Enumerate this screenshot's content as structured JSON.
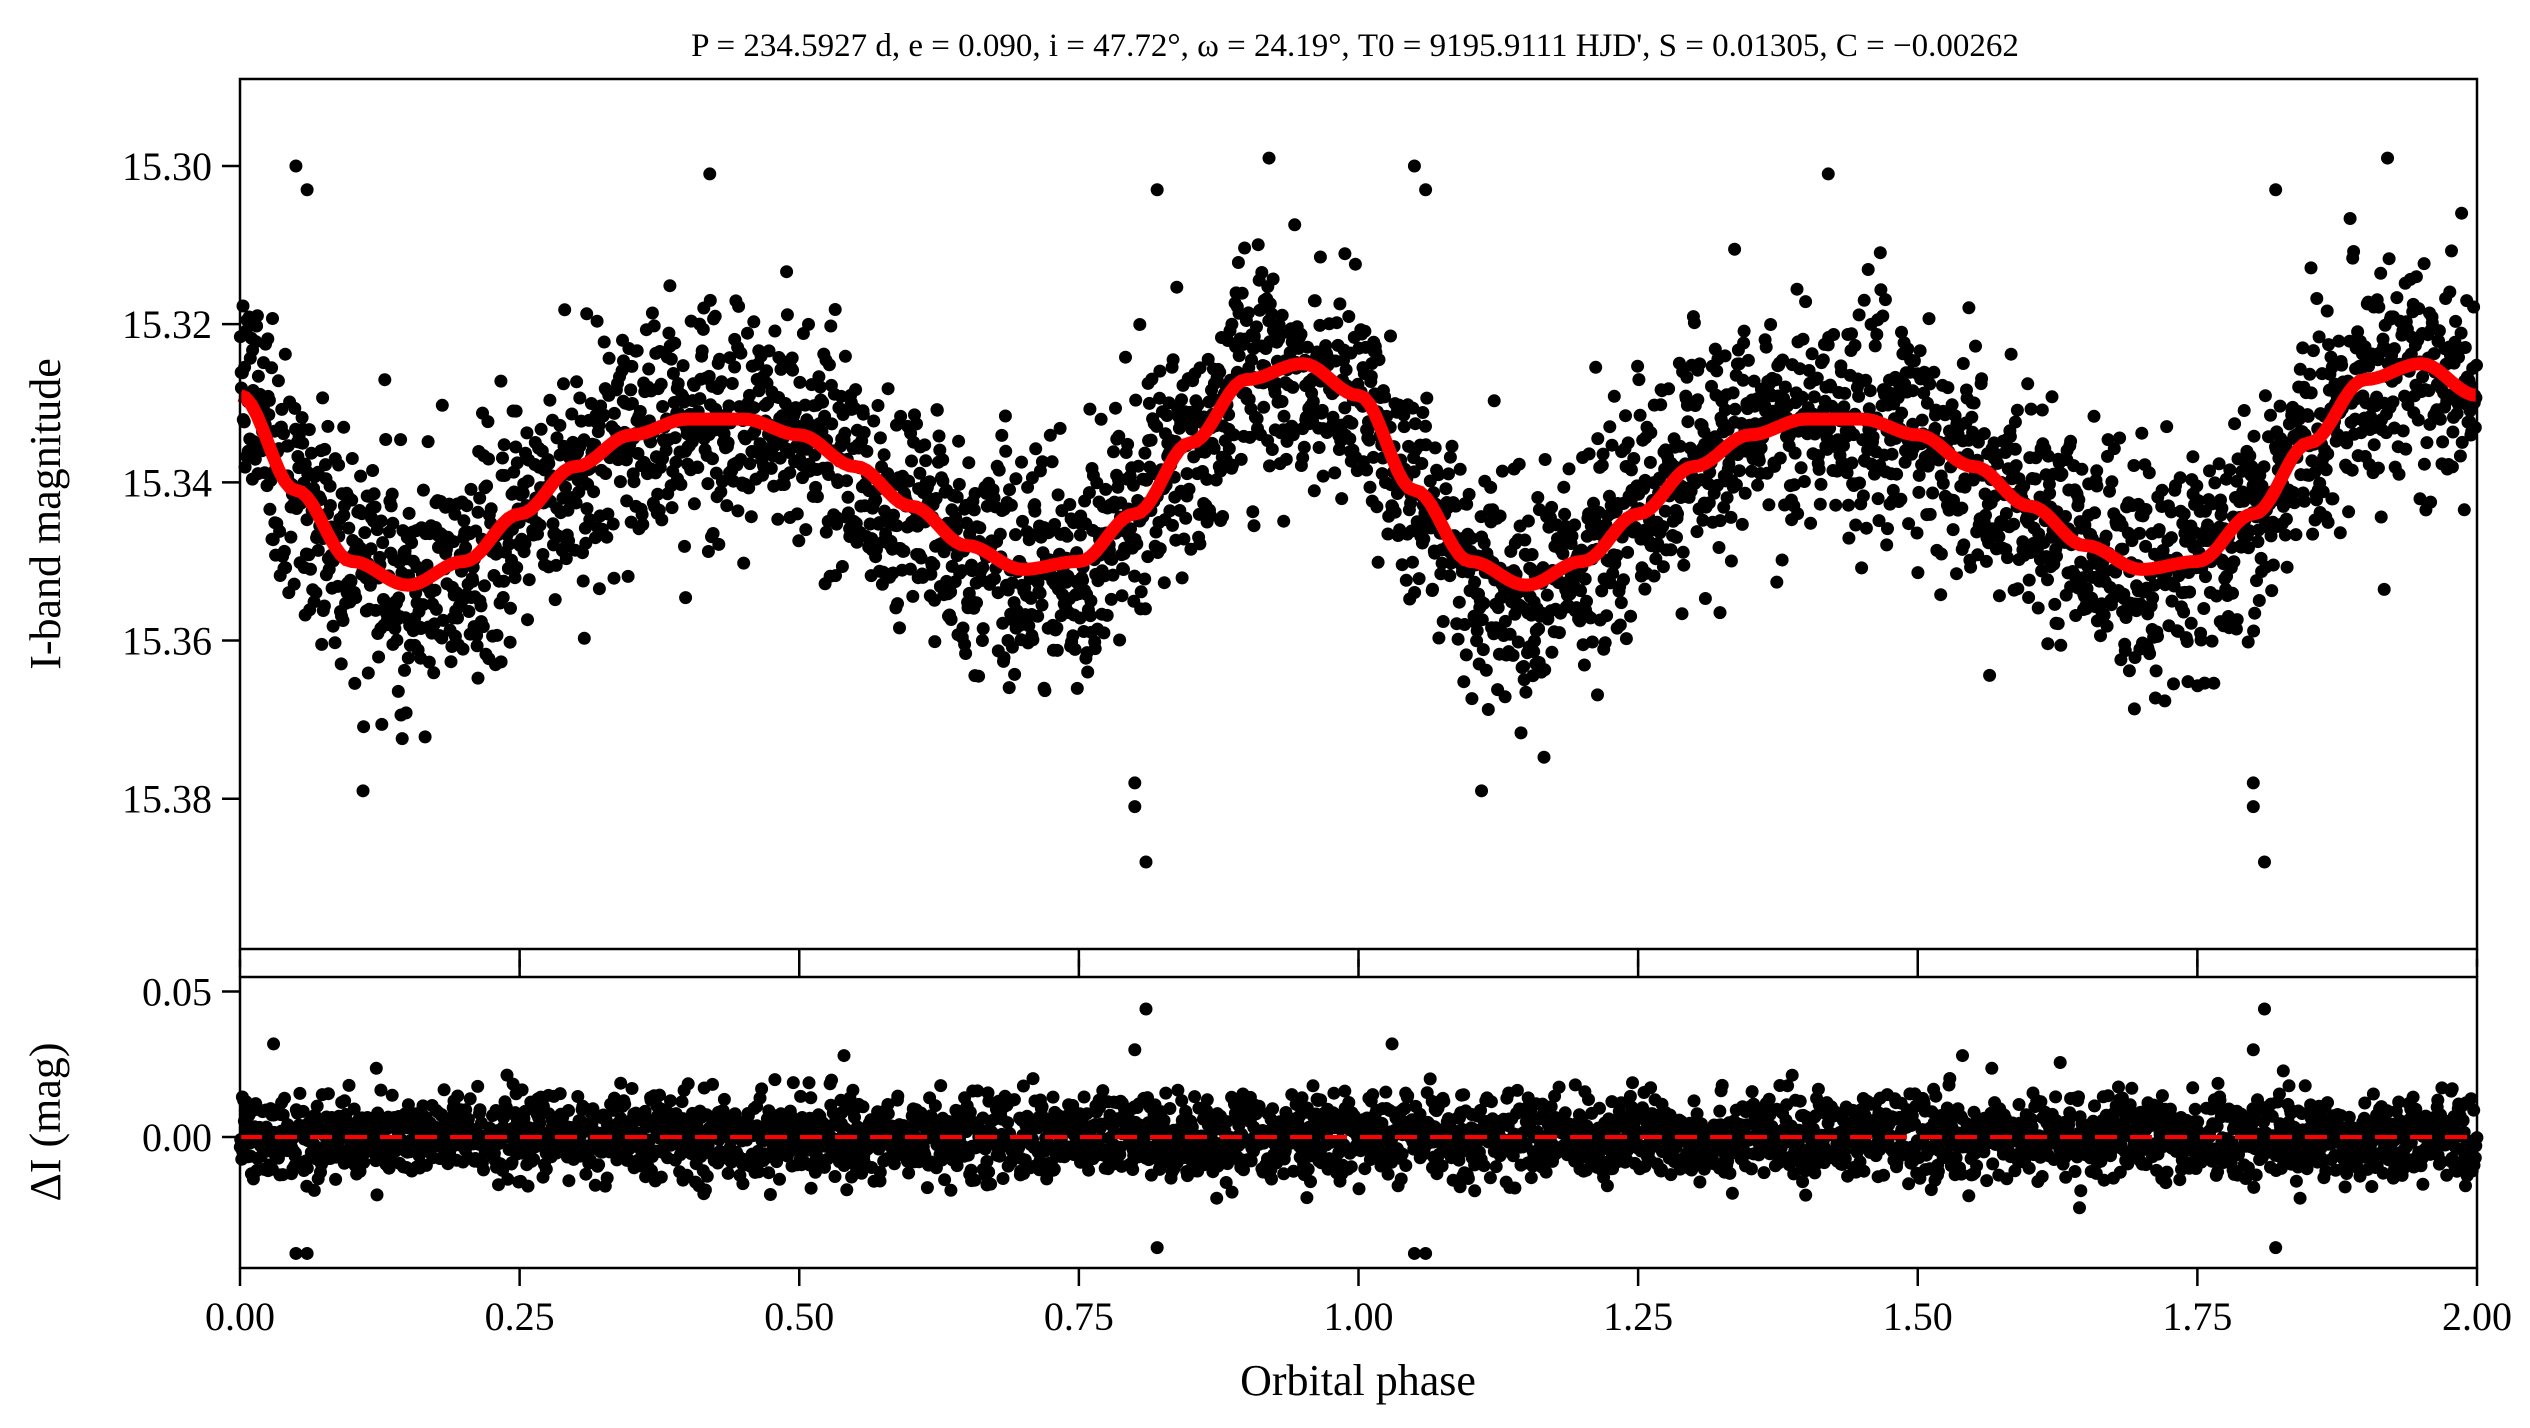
{
  "chart_data": [
    {
      "type": "scatter",
      "title": "P = 234.5927 d, e = 0.090, i = 47.72°, ω = 24.19°, T0 = 9195.9111 HJD', S = 0.01305, C = −0.00262",
      "ylabel": "I-band magnitude",
      "xlabel": "",
      "xlim": [
        0.0,
        2.0
      ],
      "ylim": [
        15.399,
        15.289
      ],
      "y_inverted": true,
      "grid": false,
      "yticks": [
        15.3,
        15.32,
        15.34,
        15.36,
        15.38
      ],
      "ytick_labels": [
        "15.30",
        "15.32",
        "15.34",
        "15.36",
        "15.38"
      ],
      "xticks": [
        0.0,
        0.25,
        0.5,
        0.75,
        1.0,
        1.25,
        1.5,
        1.75,
        2.0
      ],
      "colors": {
        "points": "#000000",
        "model": "#ff0000"
      },
      "model_curve": {
        "x": [
          0.0,
          0.05,
          0.1,
          0.15,
          0.2,
          0.25,
          0.3,
          0.35,
          0.4,
          0.45,
          0.5,
          0.55,
          0.6,
          0.65,
          0.7,
          0.75,
          0.8,
          0.85,
          0.9,
          0.95,
          1.0,
          1.05,
          1.1,
          1.15,
          1.2,
          1.25,
          1.3,
          1.35,
          1.4,
          1.45,
          1.5,
          1.55,
          1.6,
          1.65,
          1.7,
          1.75,
          1.8,
          1.85,
          1.9,
          1.95,
          2.0
        ],
        "y": [
          15.329,
          15.341,
          15.35,
          15.353,
          15.35,
          15.344,
          15.338,
          15.334,
          15.332,
          15.332,
          15.334,
          15.338,
          15.343,
          15.348,
          15.351,
          15.35,
          15.344,
          15.335,
          15.327,
          15.325,
          15.329,
          15.341,
          15.35,
          15.353,
          15.35,
          15.344,
          15.338,
          15.334,
          15.332,
          15.332,
          15.334,
          15.338,
          15.343,
          15.348,
          15.351,
          15.35,
          15.344,
          15.335,
          15.327,
          15.325,
          15.329
        ]
      },
      "scatter_band_halfwidth": 0.013,
      "outliers": {
        "x": [
          0.05,
          0.06,
          0.11,
          0.42,
          0.8,
          0.8,
          0.81,
          0.82,
          0.92,
          1.05,
          1.06,
          1.11,
          1.42,
          1.8,
          1.8,
          1.81,
          1.82,
          1.92
        ],
        "y": [
          15.3,
          15.303,
          15.379,
          15.301,
          15.381,
          15.378,
          15.388,
          15.303,
          15.299,
          15.3,
          15.303,
          15.379,
          15.301,
          15.381,
          15.378,
          15.388,
          15.303,
          15.299
        ]
      }
    },
    {
      "type": "scatter",
      "title": "",
      "xlabel": "Orbital phase",
      "ylabel": "ΔI (mag)",
      "xlim": [
        0.0,
        2.0
      ],
      "ylim": [
        -0.045,
        0.055
      ],
      "y_inverted": true,
      "grid": false,
      "yticks": [
        0.0,
        0.05
      ],
      "ytick_labels": [
        "0.00",
        "0.05"
      ],
      "xticks": [
        0.0,
        0.25,
        0.5,
        0.75,
        1.0,
        1.25,
        1.5,
        1.75,
        2.0
      ],
      "xtick_labels": [
        "0.00",
        "0.25",
        "0.50",
        "0.75",
        "1.00",
        "1.25",
        "1.50",
        "1.75",
        "2.00"
      ],
      "colors": {
        "points": "#000000",
        "zero_line": "#ff0000"
      },
      "zero_line": 0.0,
      "scatter_band_halfwidth": 0.013,
      "outliers": {
        "x": [
          0.05,
          0.06,
          0.8,
          0.81,
          0.82,
          1.05,
          1.06,
          1.8,
          1.81,
          1.82,
          0.03,
          1.03,
          0.54,
          1.54
        ],
        "y": [
          -0.04,
          -0.04,
          0.03,
          0.044,
          -0.038,
          -0.04,
          -0.04,
          0.03,
          0.044,
          -0.038,
          0.032,
          0.032,
          0.028,
          0.028
        ]
      }
    }
  ]
}
